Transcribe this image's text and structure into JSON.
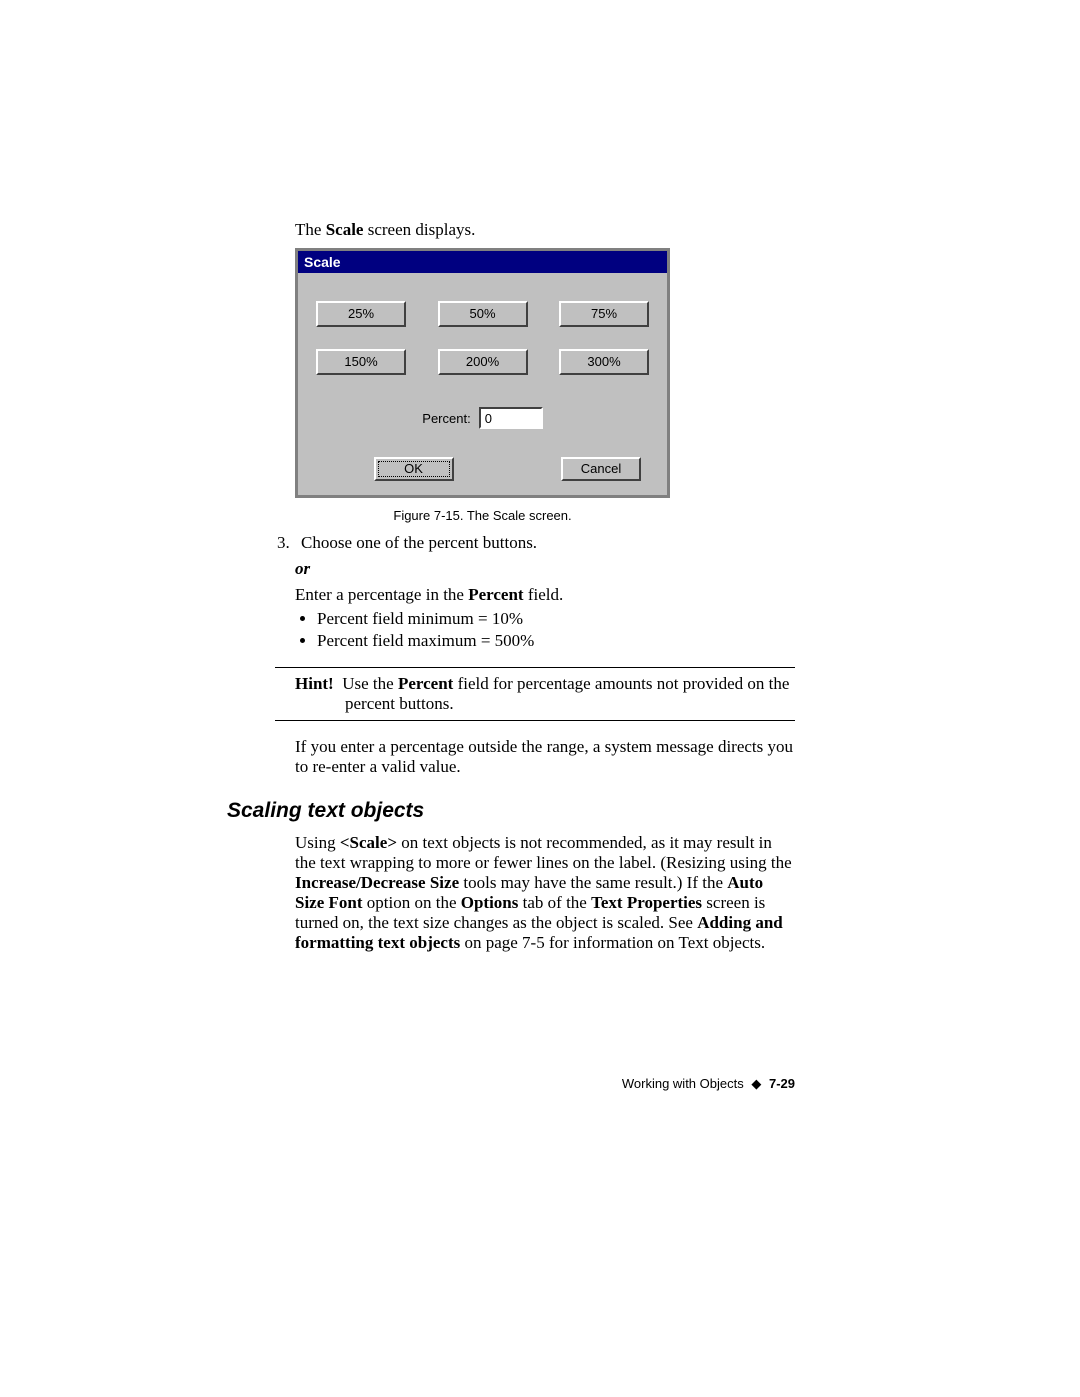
{
  "intro": {
    "pre": "The ",
    "bold": "Scale",
    "post": " screen displays."
  },
  "dialog": {
    "title": "Scale",
    "row1": [
      "25%",
      "50%",
      "75%"
    ],
    "row2": [
      "150%",
      "200%",
      "300%"
    ],
    "percent_label": "Percent:",
    "percent_value": "0",
    "ok": "OK",
    "cancel": "Cancel"
  },
  "caption": "Figure 7-15. The Scale screen.",
  "step3_num": "3.",
  "step3_text": "Choose one of the percent buttons.",
  "or": "or",
  "enter_line_pre": "Enter a percentage in the ",
  "enter_line_bold": "Percent",
  "enter_line_post": " field.",
  "bullet1": "Percent field minimum = 10%",
  "bullet2": "Percent field maximum = 500%",
  "hint_label": "Hint!",
  "hint_pre": "Use the ",
  "hint_bold": "Percent",
  "hint_post": " field for percentage amounts not provided on the percent buttons.",
  "range_text": "If you enter a percentage outside the range, a system message directs you to re-enter a valid value.",
  "section_title": "Scaling text objects",
  "p1": "Using ",
  "p1b1": "<Scale>",
  "p1c": " on text objects is not recommended, as it may result in the text wrapping to more or fewer lines on the label. (Resizing using the ",
  "p1b2": "Increase/Decrease Size",
  "p1d": " tools may have the same result.) If the ",
  "p1b3": "Auto Size Font",
  "p1e": " option on the ",
  "p1b4": "Options",
  "p1f": " tab of the ",
  "p1b5": "Text Properties",
  "p1g": " screen is turned on, the text size changes as the object is scaled. See ",
  "p1b6": "Adding and formatting text objects",
  "p1h": " on page 7-5 for information on Text objects.",
  "footer_text": "Working with Objects",
  "footer_diamond": "◆",
  "footer_page": "7-29"
}
